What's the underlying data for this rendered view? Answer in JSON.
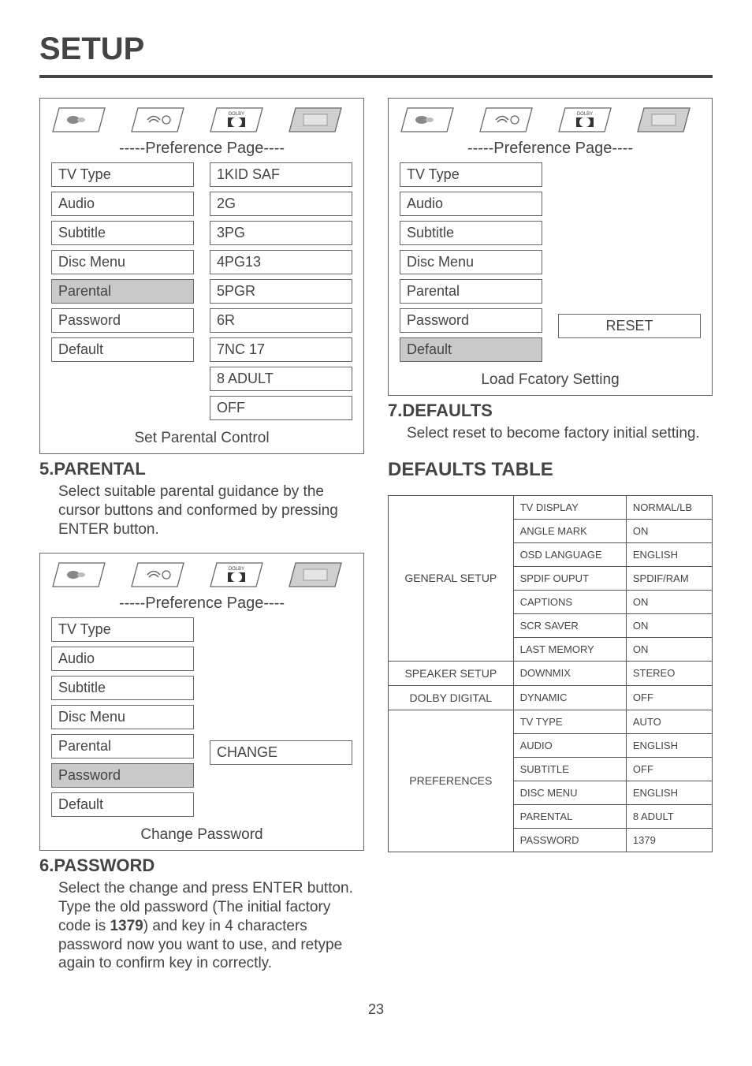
{
  "page": {
    "title": "SETUP",
    "number": "23"
  },
  "menus": {
    "header": "-----Preference Page----",
    "parental": {
      "left": [
        "TV Type",
        "Audio",
        "Subtitle",
        "Disc Menu",
        "Parental",
        "Password",
        "Default"
      ],
      "right": [
        "1KID SAF",
        "2G",
        "3PG",
        "4PG13",
        "5PGR",
        "6R",
        "7NC 17",
        "8 ADULT",
        "OFF"
      ],
      "highlight": "Parental",
      "caption": "Set Parental Control"
    },
    "password": {
      "left": [
        "TV Type",
        "Audio",
        "Subtitle",
        "Disc Menu",
        "Parental",
        "Password",
        "Default"
      ],
      "right_label": "CHANGE",
      "highlight": "Password",
      "caption": "Change Password"
    },
    "default": {
      "left": [
        "TV Type",
        "Audio",
        "Subtitle",
        "Disc Menu",
        "Parental",
        "Password",
        "Default"
      ],
      "right_label": "RESET",
      "highlight": "Default",
      "caption": "Load Fcatory  Setting"
    }
  },
  "sections": {
    "s5": {
      "head": "5.PARENTAL",
      "body": "Select suitable parental guidance by the cursor buttons and conformed by pressing ENTER button."
    },
    "s6": {
      "head": "6.PASSWORD",
      "body_pre": "Select the change and press ENTER button.  Type the old password (The initial factory code is ",
      "body_bold": "1379",
      "body_post": ") and key in 4 characters password now you want to use, and retype again to confirm key in correctly."
    },
    "s7": {
      "head": "7.DEFAULTS",
      "body": "Select reset to become factory initial setting."
    },
    "defaults_heading": "DEFAULTS TABLE"
  },
  "defaults_table": {
    "rows": [
      {
        "cat": "GENERAL SETUP",
        "span": 7,
        "items": [
          [
            "TV DISPLAY",
            "NORMAL/LB"
          ],
          [
            "ANGLE MARK",
            "ON"
          ],
          [
            "OSD LANGUAGE",
            "ENGLISH"
          ],
          [
            "SPDIF OUPUT",
            "SPDIF/RAM"
          ],
          [
            "CAPTIONS",
            "ON"
          ],
          [
            "SCR SAVER",
            "ON"
          ],
          [
            "LAST MEMORY",
            "ON"
          ]
        ]
      },
      {
        "cat": "SPEAKER SETUP",
        "span": 1,
        "items": [
          [
            "DOWNMIX",
            "STEREO"
          ]
        ]
      },
      {
        "cat": "DOLBY DIGITAL",
        "span": 1,
        "items": [
          [
            "DYNAMIC",
            "OFF"
          ]
        ]
      },
      {
        "cat": "PREFERENCES",
        "span": 6,
        "items": [
          [
            "TV TYPE",
            "AUTO"
          ],
          [
            "AUDIO",
            "ENGLISH"
          ],
          [
            "SUBTITLE",
            "OFF"
          ],
          [
            "DISC MENU",
            "ENGLISH"
          ],
          [
            "PARENTAL",
            "8 ADULT"
          ],
          [
            "PASSWORD",
            "1379"
          ]
        ]
      }
    ]
  },
  "icons": {
    "dolby_label": "DOLBY"
  },
  "colors": {
    "text": "#444444",
    "border": "#666666",
    "highlight_bg": "#c9c9c9"
  }
}
